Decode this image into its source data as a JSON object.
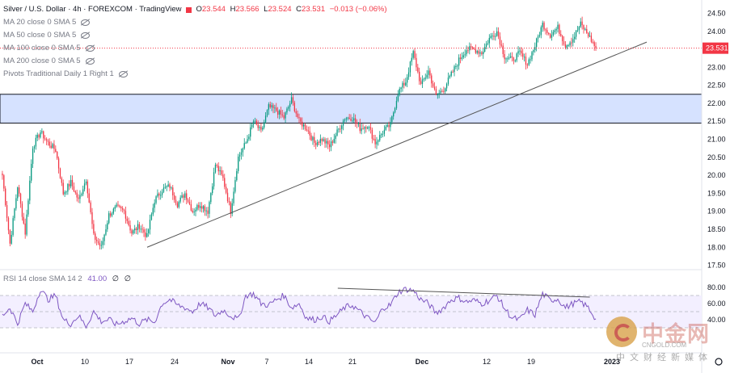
{
  "legend": {
    "symbol": "Silver / U.S. Dollar · 4h · FOREXCOM · TradingView",
    "ohlc": [
      {
        "k": "O",
        "v": "23.544"
      },
      {
        "k": "H",
        "v": "23.566"
      },
      {
        "k": "L",
        "v": "23.524"
      },
      {
        "k": "C",
        "v": "23.531"
      },
      {
        "k": "",
        "v": "−0.013 (−0.06%)"
      }
    ],
    "indicators": [
      "MA 20 close 0 SMA 5",
      "MA 50 close 0 SMA 5",
      "MA 100 close 0 SMA 5",
      "MA 200 close 0 SMA 5",
      "Pivots Traditional Daily 1 Right 1"
    ]
  },
  "rsi_legend": {
    "label": "RSI 14 close SMA 14 2",
    "value": "41.00",
    "z1": "∅",
    "z2": "∅"
  },
  "watermark": {
    "cn": "中金网",
    "en": "CNGOLD.COM",
    "sub": "中文财经新媒体"
  },
  "colors": {
    "up": "#089981",
    "down": "#f23645",
    "zone_fill": "#d6e2ff",
    "rsi_line": "#7e57c2",
    "rsi_band": "#f3efff",
    "trend": "#555555",
    "price_tag": "#f23645"
  },
  "chart_data": [
    {
      "type": "candlestick",
      "title": "Silver / U.S. Dollar · 4h · FOREXCOM",
      "ylim": [
        17.4,
        24.6
      ],
      "yticks": [
        "24.50",
        "24.00",
        "23.50",
        "23.00",
        "22.50",
        "22.00",
        "21.50",
        "21.00",
        "20.50",
        "20.00",
        "19.50",
        "19.00",
        "18.50",
        "18.00",
        "17.50"
      ],
      "xticks": [
        "Oct",
        "10",
        "17",
        "24",
        "Nov",
        "7",
        "14",
        "21",
        "Dec",
        "12",
        "19",
        "2023"
      ],
      "last_price": "23.531",
      "zone": [
        21.45,
        22.25
      ],
      "trendline": [
        {
          "bar": 0,
          "value": 18.0
        },
        {
          "bar": 1,
          "value": 23.7
        }
      ],
      "anchors": [
        20.0,
        18.1,
        19.7,
        18.4,
        20.8,
        21.2,
        20.9,
        20.7,
        19.5,
        19.8,
        19.3,
        19.9,
        18.3,
        18.0,
        18.9,
        19.1,
        19.0,
        18.4,
        18.6,
        18.3,
        19.3,
        19.6,
        19.7,
        19.2,
        19.5,
        19.0,
        19.2,
        19.0,
        20.3,
        19.9,
        19.0,
        20.5,
        20.9,
        21.5,
        21.2,
        21.9,
        21.8,
        21.6,
        22.1,
        21.5,
        21.3,
        20.9,
        21.0,
        20.8,
        21.2,
        21.6,
        21.6,
        21.3,
        21.4,
        20.9,
        21.2,
        21.4,
        22.3,
        22.6,
        23.4,
        22.5,
        22.9,
        22.2,
        22.4,
        22.8,
        23.2,
        23.5,
        23.5,
        23.4,
        23.8,
        24.0,
        23.3,
        23.2,
        23.4,
        23.1,
        23.6,
        24.2,
        23.9,
        24.1,
        23.6,
        23.8,
        24.2,
        23.9,
        23.53
      ]
    },
    {
      "type": "line",
      "title": "RSI 14",
      "ylim": [
        0,
        100
      ],
      "yticks": [
        "80.00",
        "60.00",
        "40.00"
      ],
      "band": [
        30,
        70
      ],
      "mid": 50,
      "divergence": [
        {
          "bar": 0.565,
          "value": 79
        },
        {
          "bar": 0.975,
          "value": 68
        }
      ],
      "anchors": [
        45,
        55,
        35,
        60,
        50,
        78,
        65,
        70,
        40,
        35,
        45,
        32,
        50,
        38,
        40,
        34,
        38,
        42,
        35,
        40,
        37,
        60,
        65,
        58,
        55,
        50,
        60,
        55,
        45,
        52,
        45,
        40,
        70,
        72,
        60,
        58,
        65,
        70,
        55,
        60,
        42,
        40,
        44,
        38,
        46,
        55,
        58,
        50,
        42,
        36,
        55,
        58,
        74,
        78,
        76,
        65,
        60,
        48,
        55,
        65,
        67,
        62,
        64,
        60,
        64,
        70,
        54,
        42,
        40,
        52,
        46,
        72,
        64,
        66,
        55,
        60,
        62,
        55,
        41
      ]
    }
  ]
}
